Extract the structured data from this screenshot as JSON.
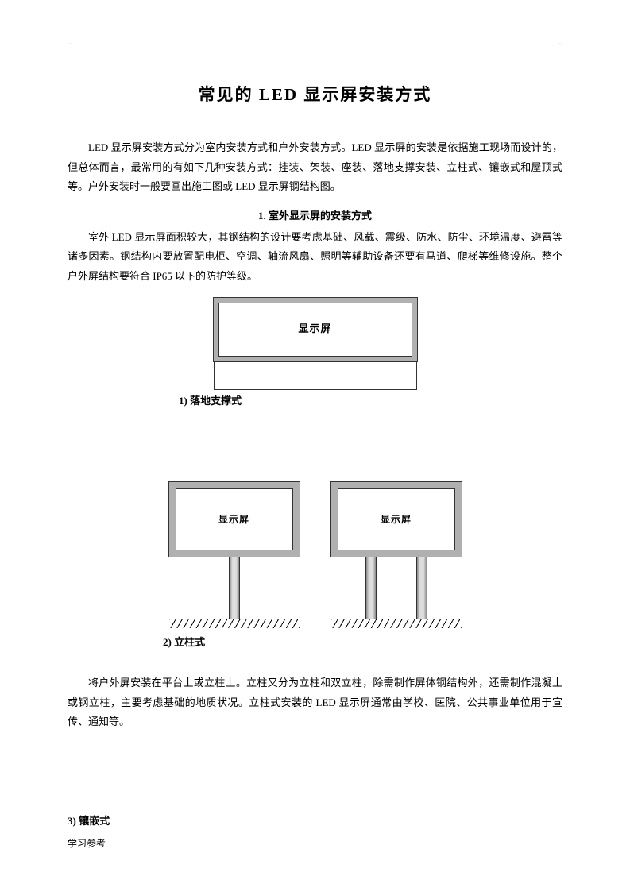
{
  "dots": {
    "d1": "..",
    "d2": ".",
    "d3": ".."
  },
  "title": "常见的 LED 显示屏安装方式",
  "intro": "LED 显示屏安装方式分为室内安装方式和户外安装方式。LED 显示屏的安装是依据施工现场而设计的，但总体而言，最常用的有如下几种安装方式：挂装、架装、座装、落地支撑安装、立柱式、镶嵌式和屋顶式等。户外安装时一般要画出施工图或 LED 显示屏钢结构图。",
  "section1": {
    "heading": "1. 室外显示屏的安装方式",
    "para": "室外 LED 显示屏面积较大，其钢结构的设计要考虑基础、风载、震级、防水、防尘、环境温度、避雷等诸多因素。钢结构内要放置配电柜、空调、轴流风扇、照明等辅助设备还要有马道、爬梯等维修设施。整个户外屏结构要符合 IP65 以下的防护等级。"
  },
  "fig1": {
    "screen_label": "显示屏",
    "caption": "1) 落地支撑式",
    "frame_color": "#b0b0b0",
    "border_color": "#333333"
  },
  "fig2": {
    "screen_label_a": "显示屏",
    "screen_label_b": "显示屏",
    "caption": "2) 立柱式",
    "frame_color": "#b0b0b0",
    "pole_colors": [
      "#888888",
      "#dddddd"
    ]
  },
  "para_after_fig2": "将户外屏安装在平台上或立柱上。立柱又分为立柱和双立柱，除需制作屏体钢结构外，还需制作混凝土或钢立柱，主要考虑基础的地质状况。立柱式安装的 LED 显示屏通常由学校、医院、公共事业单位用于宣传、通知等。",
  "sub3": "3) 镶嵌式",
  "footer": "学习参考"
}
